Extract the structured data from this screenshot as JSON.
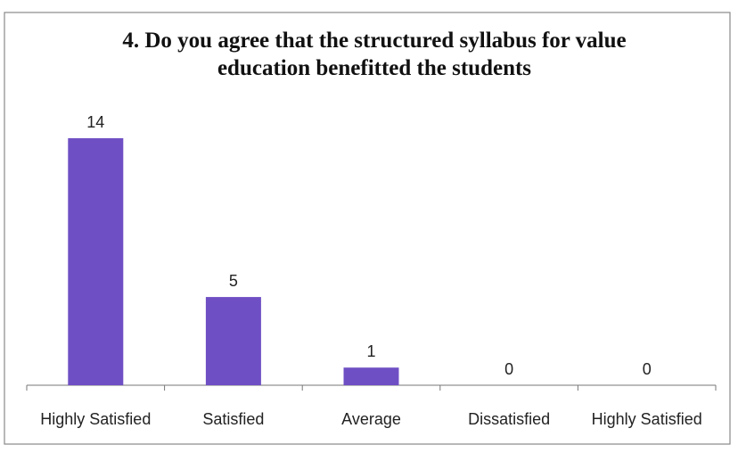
{
  "chart_data": {
    "type": "bar",
    "title": "4. Do you agree that the structured syllabus for value education benefitted the students",
    "categories": [
      "Highly Satisfied",
      "Satisfied",
      "Average",
      "Dissatisfied",
      "Highly Satisfied"
    ],
    "values": [
      14,
      5,
      1,
      0,
      0
    ],
    "color": "#6f4fc4"
  }
}
